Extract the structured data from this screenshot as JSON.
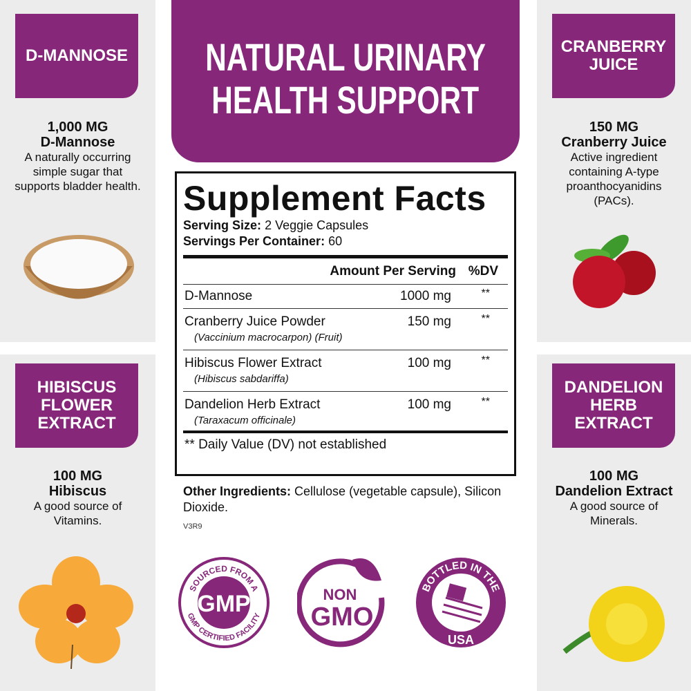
{
  "header": {
    "title_line1": "NATURAL URINARY",
    "title_line2": "HEALTH SUPPORT"
  },
  "ingredients": [
    {
      "tag": "D-MANNOSE",
      "amount": "1,000 MG",
      "name": "D-Mannose",
      "description": "A naturally occurring simple sugar that supports bladder health.",
      "image": "powder-bowl"
    },
    {
      "tag": "CRANBERRY JUICE",
      "amount": "150 MG",
      "name": "Cranberry Juice",
      "description": "Active ingredient containing A-type proanthocyanidins (PACs).",
      "image": "cranberries"
    },
    {
      "tag": "HIBISCUS FLOWER EXTRACT",
      "amount": "100 MG",
      "name": "Hibiscus",
      "description": "A good source of Vitamins.",
      "image": "hibiscus-flower"
    },
    {
      "tag": "DANDELION HERB EXTRACT",
      "amount": "100 MG",
      "name": "Dandelion Extract",
      "description": "A good source of Minerals.",
      "image": "dandelion-flower"
    }
  ],
  "facts": {
    "title": "Supplement Facts",
    "serving_size_label": "Serving Size:",
    "serving_size": "2 Veggie Capsules",
    "servings_label": "Servings Per Container:",
    "servings": "60",
    "col_amount": "Amount Per Serving",
    "col_dv": "%DV",
    "rows": [
      {
        "name": "D-Mannose",
        "latin": "",
        "amount": "1000 mg",
        "dv": "**"
      },
      {
        "name": "Cranberry Juice Powder",
        "latin": "(Vaccinium macrocarpon) (Fruit)",
        "amount": "150 mg",
        "dv": "**"
      },
      {
        "name": "Hibiscus Flower Extract",
        "latin": "(Hibiscus sabdariffa)",
        "amount": "100 mg",
        "dv": "**"
      },
      {
        "name": "Dandelion Herb Extract",
        "latin": "(Taraxacum officinale)",
        "amount": "100 mg",
        "dv": "**"
      }
    ],
    "footnote": "** Daily Value (DV) not established"
  },
  "other": {
    "label": "Other Ingredients:",
    "text": "Cellulose (vegetable capsule), Silicon Dioxide."
  },
  "code": "V3R9",
  "badges": {
    "gmp": {
      "top": "SOURCED FROM A",
      "center": "GMP",
      "bottom": "GMP CERTIFIED FACILITY"
    },
    "gmo": {
      "line1": "NON",
      "line2": "GMO"
    },
    "usa": {
      "top": "BOTTLED IN THE",
      "bottom": "USA"
    }
  },
  "colors": {
    "brand_purple": "#86277a",
    "panel_gray": "#ececec"
  }
}
